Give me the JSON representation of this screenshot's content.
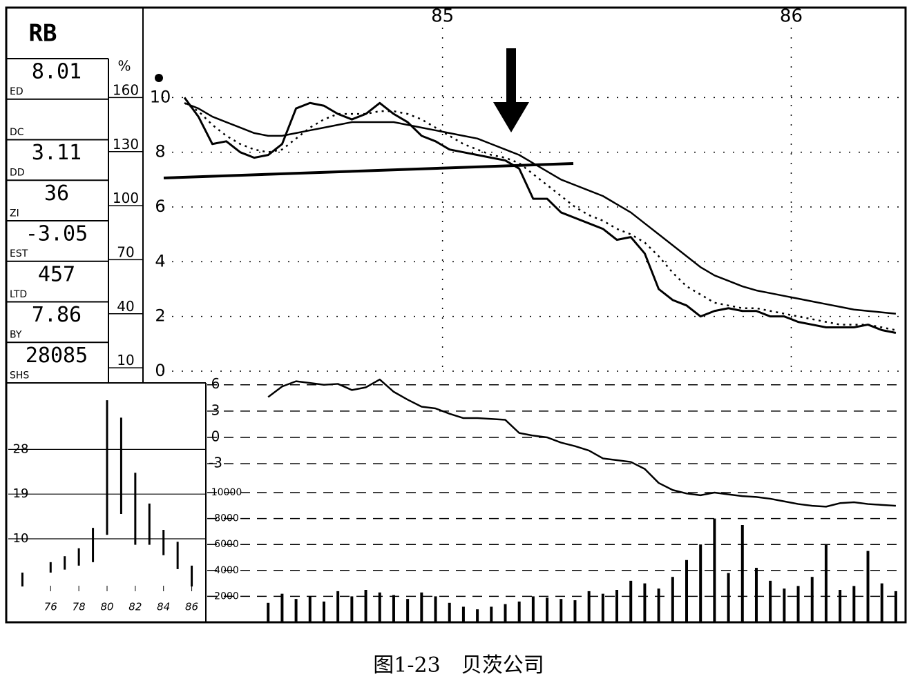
{
  "header": {
    "symbol": "RB"
  },
  "stats": [
    {
      "value": "8.01",
      "label": "ED"
    },
    {
      "value": "",
      "label": "DC"
    },
    {
      "value": "3.11",
      "label": "DD"
    },
    {
      "value": "36",
      "label": "ZI"
    },
    {
      "value": "-3.05",
      "label": "EST"
    },
    {
      "value": "457",
      "label": "LTD"
    },
    {
      "value": "7.86",
      "label": "BY"
    },
    {
      "value": "28085",
      "label": "SHS"
    }
  ],
  "percent_scale": {
    "title": "%",
    "ticks": [
      160,
      130,
      100,
      70,
      40,
      10
    ]
  },
  "chart_data": [
    {
      "type": "line",
      "x": [
        84.76,
        84.8,
        84.84,
        84.88,
        84.92,
        84.96,
        85,
        85.04,
        85.08,
        85.12,
        85.16,
        85.2,
        85.24,
        85.28,
        85.32,
        85.36,
        85.4,
        85.44,
        85.48,
        85.52,
        85.56,
        85.6,
        85.64,
        85.68,
        85.72,
        85.76,
        85.8,
        85.84,
        85.88,
        85.92,
        85.96,
        86,
        86.04,
        86.08,
        86.12,
        86.16,
        86.2,
        86.24,
        86.28,
        86.32,
        86.36,
        86.4,
        86.44,
        86.48,
        86.52,
        86.56,
        86.6,
        86.64,
        86.68,
        86.72,
        86.76,
        86.8
      ],
      "xlim": [
        84.75,
        86.82
      ],
      "xticks": [
        {
          "value": 85.5,
          "label": "85"
        },
        {
          "value": 86.5,
          "label": "86"
        }
      ],
      "ylim": [
        0,
        12
      ],
      "yticks": [
        0,
        2,
        4,
        6,
        8,
        10
      ],
      "grid": true,
      "series": [
        {
          "color": "#000000",
          "style": "heavy",
          "values": [
            10.0,
            9.3,
            8.3,
            8.4,
            8.0,
            7.8,
            7.9,
            8.3,
            9.6,
            9.8,
            9.7,
            9.4,
            9.2,
            9.4,
            9.8,
            9.4,
            9.1,
            8.6,
            8.4,
            8.1,
            8.0,
            7.9,
            7.8,
            7.7,
            7.4,
            6.3,
            6.3,
            5.8,
            5.6,
            5.4,
            5.2,
            4.8,
            4.9,
            4.3,
            3.0,
            2.6,
            2.4,
            2.0,
            2.2,
            2.3,
            2.2,
            2.2,
            2.0,
            2.0,
            1.8,
            1.7,
            1.6,
            1.6,
            1.6,
            1.7,
            1.5,
            1.4
          ]
        },
        {
          "color": "#000000",
          "style": "dotted",
          "values": [
            9.8,
            9.5,
            9.0,
            8.6,
            8.3,
            8.1,
            8.0,
            8.1,
            8.5,
            8.9,
            9.2,
            9.4,
            9.4,
            9.4,
            9.5,
            9.5,
            9.4,
            9.2,
            8.9,
            8.6,
            8.3,
            8.1,
            7.9,
            7.8,
            7.6,
            7.2,
            6.8,
            6.4,
            6.0,
            5.7,
            5.5,
            5.2,
            5.0,
            4.7,
            4.2,
            3.6,
            3.1,
            2.8,
            2.5,
            2.4,
            2.3,
            2.3,
            2.2,
            2.1,
            2.0,
            1.9,
            1.8,
            1.7,
            1.7,
            1.7,
            1.6,
            1.5
          ]
        },
        {
          "color": "#000000",
          "style": "solid",
          "values": [
            9.8,
            9.6,
            9.3,
            9.1,
            8.9,
            8.7,
            8.6,
            8.6,
            8.7,
            8.8,
            8.9,
            9.0,
            9.1,
            9.1,
            9.1,
            9.1,
            9.0,
            8.9,
            8.8,
            8.7,
            8.6,
            8.5,
            8.3,
            8.1,
            7.9,
            7.6,
            7.3,
            7.0,
            6.8,
            6.6,
            6.4,
            6.1,
            5.8,
            5.4,
            5.0,
            4.6,
            4.2,
            3.8,
            3.5,
            3.3,
            3.1,
            2.95,
            2.85,
            2.75,
            2.65,
            2.55,
            2.45,
            2.35,
            2.25,
            2.2,
            2.15,
            2.1
          ]
        }
      ]
    },
    {
      "type": "line",
      "x": [
        84.76,
        84.8,
        84.84,
        84.88,
        84.92,
        84.96,
        85,
        85.04,
        85.08,
        85.12,
        85.16,
        85.2,
        85.24,
        85.28,
        85.32,
        85.36,
        85.4,
        85.44,
        85.48,
        85.52,
        85.56,
        85.6,
        85.64,
        85.68,
        85.72,
        85.76,
        85.8,
        85.84,
        85.88,
        85.92,
        85.96,
        86,
        86.04,
        86.08,
        86.12,
        86.16,
        86.2,
        86.24,
        86.28,
        86.32,
        86.36,
        86.4,
        86.44,
        86.48,
        86.52,
        86.56,
        86.6,
        86.64,
        86.68,
        86.72,
        86.76,
        86.8
      ],
      "xlim": [
        84.75,
        86.82
      ],
      "ylim": [
        -8.5,
        7
      ],
      "yticks": [
        6,
        3,
        0,
        -3
      ],
      "grid": true,
      "series": [
        {
          "color": "#000000",
          "style": "solid",
          "values": [
            null,
            null,
            null,
            null,
            null,
            null,
            4.6,
            5.8,
            6.4,
            6.2,
            6.0,
            6.1,
            5.4,
            5.7,
            6.6,
            5.2,
            4.3,
            3.5,
            3.3,
            2.7,
            2.2,
            2.2,
            2.1,
            2.0,
            0.5,
            0.2,
            0.0,
            -0.6,
            -1.0,
            -1.5,
            -2.4,
            -2.6,
            -2.8,
            -3.6,
            -5.2,
            -6.0,
            -6.4,
            -6.6,
            -6.3,
            -6.5,
            -6.7,
            -6.8,
            -7.0,
            -7.3,
            -7.6,
            -7.8,
            -7.9,
            -7.5,
            -7.4,
            -7.6,
            -7.7,
            -7.8
          ]
        }
      ]
    },
    {
      "type": "bar",
      "x": [
        84.76,
        84.8,
        84.84,
        84.88,
        84.92,
        84.96,
        85,
        85.04,
        85.08,
        85.12,
        85.16,
        85.2,
        85.24,
        85.28,
        85.32,
        85.36,
        85.4,
        85.44,
        85.48,
        85.52,
        85.56,
        85.6,
        85.64,
        85.68,
        85.72,
        85.76,
        85.8,
        85.84,
        85.88,
        85.92,
        85.96,
        86,
        86.04,
        86.08,
        86.12,
        86.16,
        86.2,
        86.24,
        86.28,
        86.32,
        86.36,
        86.4,
        86.44,
        86.48,
        86.52,
        86.56,
        86.6,
        86.64,
        86.68,
        86.72,
        86.76,
        86.8
      ],
      "xlim": [
        84.75,
        86.82
      ],
      "ylim": [
        0,
        10000
      ],
      "yticks": [
        2000,
        4000,
        6000,
        8000,
        10000
      ],
      "grid": true,
      "color": "#000000",
      "values": [
        null,
        null,
        null,
        null,
        null,
        null,
        1500,
        2200,
        1800,
        2000,
        1600,
        2400,
        2000,
        2500,
        2300,
        2100,
        1800,
        2300,
        2000,
        1500,
        1200,
        1000,
        1200,
        1400,
        1600,
        2000,
        1900,
        1800,
        1700,
        2400,
        2200,
        2500,
        3200,
        3000,
        2600,
        3500,
        4800,
        6000,
        8000,
        3800,
        7500,
        4200,
        3200,
        2600,
        2800,
        3500,
        6000,
        2500,
        2800,
        5500,
        3000,
        2400
      ]
    },
    {
      "type": "range",
      "x": [
        74,
        76,
        77,
        78,
        79,
        80,
        81,
        82,
        83,
        84,
        85,
        86
      ],
      "xlim": [
        73,
        87
      ],
      "xticks": [
        76,
        78,
        80,
        82,
        84,
        86
      ],
      "ylim": [
        0,
        40
      ],
      "yticks": [
        10,
        19,
        28
      ],
      "grid": true,
      "color": "#000000",
      "low": [
        0.4,
        3.2,
        3.8,
        4.6,
        5.3,
        10.8,
        15,
        8.8,
        8.8,
        6.7,
        3.9,
        0.4
      ],
      "high": [
        3.2,
        5.3,
        6.5,
        8.1,
        12.2,
        37.9,
        34.4,
        23.3,
        17.1,
        11.8,
        9.4,
        4.6
      ]
    }
  ],
  "caption": "图1-23　贝茨公司"
}
